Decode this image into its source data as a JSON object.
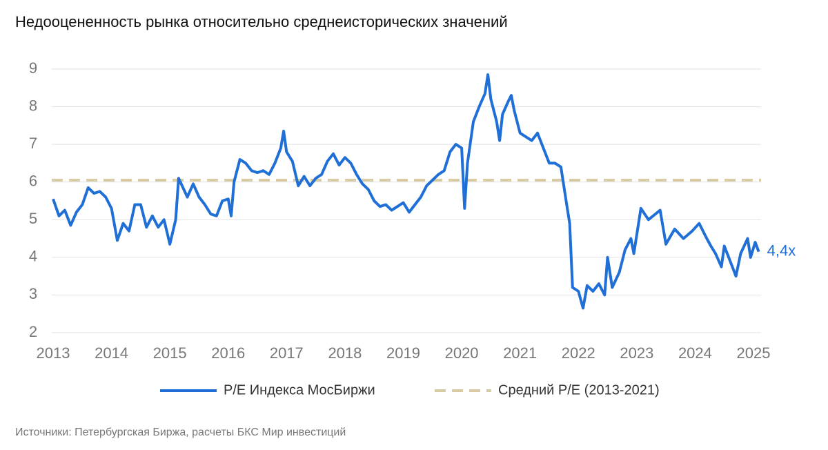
{
  "chart_data": {
    "type": "line",
    "title": "Недооцененность рынка относительно среднеисторических значений",
    "source": "Источники: Петербургская Биржа, расчеты БКС Мир инвестиций",
    "annotation": "4,4x",
    "xlim": [
      2013,
      2025.13
    ],
    "xticks": [
      2013,
      2014,
      2015,
      2016,
      2017,
      2018,
      2019,
      2020,
      2021,
      2022,
      2023,
      2024,
      2025
    ],
    "ylim": [
      2,
      9
    ],
    "yticks": [
      2,
      3,
      4,
      5,
      6,
      7,
      8,
      9
    ],
    "grid": true,
    "legend": "bottom",
    "x": [
      2013.0,
      2013.1,
      2013.2,
      2013.3,
      2013.4,
      2013.5,
      2013.6,
      2013.7,
      2013.8,
      2013.9,
      2014.0,
      2014.1,
      2014.2,
      2014.3,
      2014.4,
      2014.5,
      2014.6,
      2014.7,
      2014.8,
      2014.9,
      2015.0,
      2015.1,
      2015.15,
      2015.3,
      2015.4,
      2015.5,
      2015.6,
      2015.7,
      2015.8,
      2015.9,
      2016.0,
      2016.05,
      2016.1,
      2016.2,
      2016.3,
      2016.4,
      2016.5,
      2016.6,
      2016.7,
      2016.8,
      2016.9,
      2016.95,
      2017.0,
      2017.1,
      2017.2,
      2017.3,
      2017.4,
      2017.5,
      2017.6,
      2017.7,
      2017.8,
      2017.9,
      2018.0,
      2018.1,
      2018.2,
      2018.3,
      2018.4,
      2018.5,
      2018.6,
      2018.7,
      2018.8,
      2018.9,
      2019.0,
      2019.1,
      2019.2,
      2019.3,
      2019.4,
      2019.5,
      2019.6,
      2019.7,
      2019.8,
      2019.9,
      2020.0,
      2020.05,
      2020.1,
      2020.2,
      2020.3,
      2020.4,
      2020.45,
      2020.5,
      2020.6,
      2020.65,
      2020.7,
      2020.8,
      2020.85,
      2020.9,
      2021.0,
      2021.1,
      2021.2,
      2021.3,
      2021.4,
      2021.5,
      2021.6,
      2021.7,
      2021.75,
      2021.8,
      2021.85,
      2021.9,
      2022.0,
      2022.08,
      2022.15,
      2022.25,
      2022.35,
      2022.45,
      2022.5,
      2022.58,
      2022.7,
      2022.8,
      2022.9,
      2022.95,
      2023.07,
      2023.2,
      2023.4,
      2023.5,
      2023.65,
      2023.8,
      2023.95,
      2024.07,
      2024.2,
      2024.27,
      2024.35,
      2024.45,
      2024.5,
      2024.6,
      2024.7,
      2024.78,
      2024.9,
      2024.95,
      2025.03,
      2025.09
    ],
    "series": [
      {
        "name": "P/E Индекса МосБиржи",
        "color": "#1f6fd6",
        "values": [
          5.55,
          5.1,
          5.25,
          4.85,
          5.2,
          5.4,
          5.85,
          5.7,
          5.75,
          5.6,
          5.3,
          4.45,
          4.9,
          4.7,
          5.4,
          5.4,
          4.8,
          5.1,
          4.8,
          5.0,
          4.35,
          5.0,
          6.1,
          5.6,
          5.95,
          5.6,
          5.4,
          5.15,
          5.1,
          5.5,
          5.55,
          5.1,
          6.0,
          6.6,
          6.5,
          6.3,
          6.25,
          6.3,
          6.2,
          6.5,
          6.9,
          7.35,
          6.8,
          6.55,
          5.9,
          6.15,
          5.9,
          6.1,
          6.2,
          6.55,
          6.75,
          6.45,
          6.65,
          6.5,
          6.2,
          5.95,
          5.8,
          5.5,
          5.35,
          5.4,
          5.25,
          5.35,
          5.45,
          5.2,
          5.4,
          5.6,
          5.9,
          6.05,
          6.2,
          6.3,
          6.8,
          7.0,
          6.9,
          5.3,
          6.5,
          7.6,
          8.0,
          8.35,
          8.85,
          8.2,
          7.6,
          7.1,
          7.8,
          8.15,
          8.3,
          7.9,
          7.3,
          7.2,
          7.1,
          7.3,
          6.9,
          6.5,
          6.5,
          6.4,
          5.9,
          5.4,
          4.9,
          3.2,
          3.1,
          2.65,
          3.25,
          3.1,
          3.3,
          3.0,
          4.0,
          3.2,
          3.6,
          4.2,
          4.5,
          4.1,
          5.3,
          5.0,
          5.25,
          4.35,
          4.75,
          4.5,
          4.7,
          4.9,
          4.5,
          4.3,
          4.1,
          3.75,
          4.3,
          3.9,
          3.5,
          4.1,
          4.5,
          4.0,
          4.4,
          4.15
        ]
      }
    ],
    "reference_lines": [
      {
        "name": "Средний P/E (2013-2021)",
        "color": "#d9cba3",
        "value": 6.05
      }
    ]
  }
}
